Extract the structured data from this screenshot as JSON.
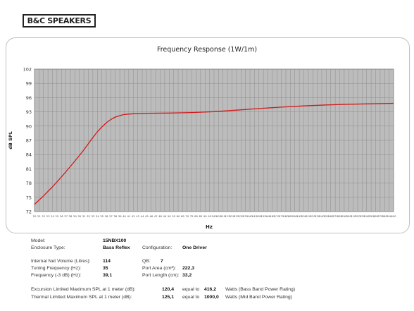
{
  "brand": "B&C SPEAKERS",
  "chart_data": {
    "type": "line",
    "title": "Frequency Response (1W/1m)",
    "xlabel": "Hz",
    "ylabel": "dB SPL",
    "ylim": [
      72,
      102
    ],
    "yticks": [
      "72",
      "75",
      "78",
      "81",
      "84",
      "87",
      "90",
      "93",
      "96",
      "99",
      "102"
    ],
    "xtick_labels": [
      "20",
      "21",
      "22",
      "23",
      "24",
      "25",
      "26",
      "27",
      "28",
      "29",
      "30",
      "31",
      "32",
      "33",
      "34",
      "35",
      "36",
      "37",
      "38",
      "39",
      "40",
      "41",
      "42",
      "43",
      "44",
      "45",
      "46",
      "47",
      "48",
      "49",
      "50",
      "55",
      "60",
      "65",
      "70",
      "75",
      "80",
      "85",
      "90",
      "95",
      "100",
      "105",
      "110",
      "115",
      "120",
      "125",
      "130",
      "135",
      "140",
      "145",
      "150",
      "155",
      "160",
      "165",
      "170",
      "175",
      "180",
      "185",
      "190",
      "195",
      "200",
      "210",
      "220",
      "230",
      "240",
      "250",
      "260",
      "270",
      "280",
      "290",
      "300",
      "310",
      "320",
      "330",
      "340",
      "350",
      "360",
      "370",
      "380",
      "390",
      "400"
    ],
    "grid": true,
    "series": [
      {
        "color": "#d11a1a",
        "points": [
          [
            0,
            73.5
          ],
          [
            2,
            75.3
          ],
          [
            4,
            77.2
          ],
          [
            6,
            79.3
          ],
          [
            8,
            81.5
          ],
          [
            10,
            83.8
          ],
          [
            11,
            85
          ],
          [
            12,
            86.3
          ],
          [
            13,
            87.6
          ],
          [
            14,
            88.8
          ],
          [
            15,
            89.8
          ],
          [
            16,
            90.7
          ],
          [
            17,
            91.4
          ],
          [
            18,
            91.9
          ],
          [
            19,
            92.2
          ],
          [
            20,
            92.45
          ],
          [
            22,
            92.6
          ],
          [
            25,
            92.7
          ],
          [
            30,
            92.75
          ],
          [
            35,
            92.85
          ],
          [
            40,
            93.05
          ],
          [
            45,
            93.35
          ],
          [
            50,
            93.7
          ],
          [
            55,
            94.0
          ],
          [
            60,
            94.25
          ],
          [
            65,
            94.45
          ],
          [
            70,
            94.6
          ],
          [
            75,
            94.7
          ],
          [
            80,
            94.8
          ]
        ]
      }
    ]
  },
  "specs": {
    "model_label": "Model:",
    "model_value": "15NBX100",
    "enclosure_label": "Enclosure Type:",
    "enclosure_value": "Bass Reflex",
    "configuration_label": "Configuration:",
    "configuration_value": "One Driver",
    "volume_label": "Internal  Net Volume (Litres):",
    "volume_value": "114",
    "qb_label": "QB:",
    "qb_value": "7",
    "tuning_label": "Tuning Frequency (Hz):",
    "tuning_value": "35",
    "port_area_label": "Port Area (cm²):",
    "port_area_value": "222,3",
    "freq3db_label": "Frequency (-3 dB) (Hz):",
    "freq3db_value": "39,1",
    "port_length_label": "Port Length (cm):",
    "port_length_value": "33,2",
    "excursion_label": "Excursion Limited Maximum SPL at 1 meter (dB):",
    "excursion_value": "120,4",
    "excursion_equal": "equal to",
    "excursion_watts": "416,2",
    "excursion_note": "Watts (Bass Band Power Rating)",
    "thermal_label": "Thermal Limited Maximum SPL at 1 meter (dB):",
    "thermal_value": "125,1",
    "thermal_equal": "equal to",
    "thermal_watts": "1000,0",
    "thermal_note": "Watts (Mid Band Power Rating)"
  }
}
